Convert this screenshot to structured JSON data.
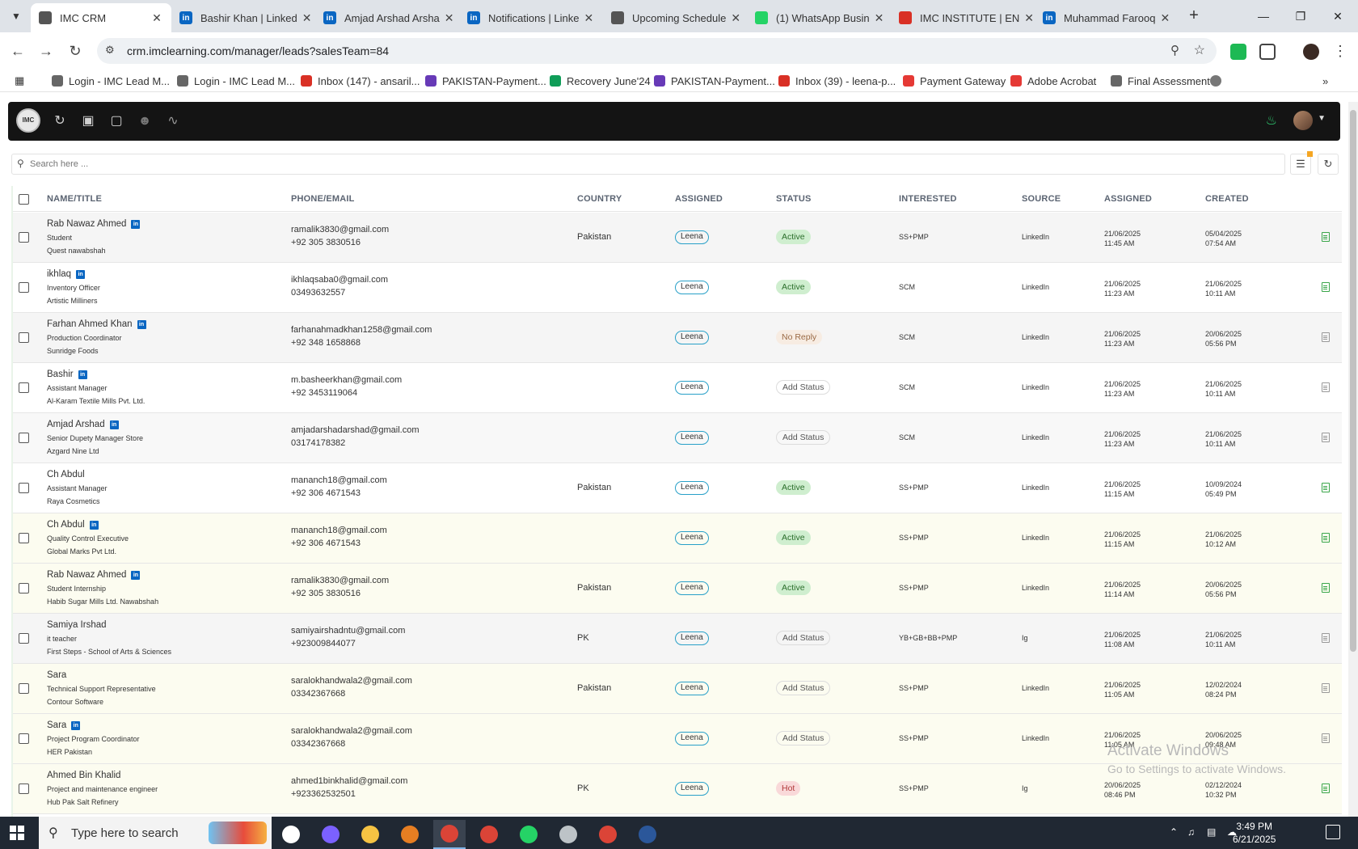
{
  "browser": {
    "tabs": [
      {
        "title": "IMC CRM",
        "icon": "crm-seal-icon",
        "color": "#555555",
        "active": true
      },
      {
        "title": "Bashir Khan | Linked",
        "icon": "linkedin-icon",
        "color": "#0a66c2"
      },
      {
        "title": "Amjad Arshad Arsha",
        "icon": "linkedin-icon",
        "color": "#0a66c2"
      },
      {
        "title": "Notifications | Linke",
        "icon": "linkedin-icon",
        "color": "#0a66c2"
      },
      {
        "title": "Upcoming Schedule",
        "icon": "crm-seal-icon",
        "color": "#555555"
      },
      {
        "title": "(1) WhatsApp Busin",
        "icon": "whatsapp-icon",
        "color": "#25d366"
      },
      {
        "title": "IMC INSTITUTE | EN",
        "icon": "gmail-icon",
        "color": "#d93025"
      },
      {
        "title": "Muhammad Farooq",
        "icon": "linkedin-icon",
        "color": "#0a66c2"
      }
    ],
    "url": "crm.imclearning.com/manager/leads?salesTeam=84",
    "bookmarks": [
      {
        "label": "Login - IMC Lead M...",
        "color": "#666666"
      },
      {
        "label": "Login - IMC Lead M...",
        "color": "#666666"
      },
      {
        "label": "Inbox (147) - ansaril...",
        "color": "#d93025"
      },
      {
        "label": "PAKISTAN-Payment...",
        "color": "#673ab7"
      },
      {
        "label": "Recovery June'24",
        "color": "#0f9d58"
      },
      {
        "label": "PAKISTAN-Payment...",
        "color": "#673ab7"
      },
      {
        "label": "Inbox (39) - leena-p...",
        "color": "#d93025"
      },
      {
        "label": "Payment Gateway",
        "color": "#e53935"
      },
      {
        "label": "Adobe Acrobat",
        "color": "#e53935"
      },
      {
        "label": "Final Assessment",
        "color": "#666666"
      }
    ]
  },
  "crm": {
    "logo_text": "IMC",
    "search_placeholder": "Search here ...",
    "columns": {
      "name": "NAME/TITLE",
      "contact": "PHONE/EMAIL",
      "country": "COUNTRY",
      "assigned": "ASSIGNED",
      "status": "STATUS",
      "interested": "INTERESTED",
      "source": "SOURCE",
      "assigned_at": "ASSIGNED",
      "created": "CREATED"
    },
    "leads": [
      {
        "name": "Rab Nawaz Ahmed",
        "linkedin": true,
        "title": "Student",
        "company": "Quest nawabshah",
        "email": "ramalik3830@gmail.com",
        "phone": "+92 305 3830516",
        "country": "Pakistan",
        "assigned": "Leena",
        "status": "Active",
        "status_kind": "active",
        "interested": "SS+PMP",
        "source": "LinkedIn",
        "assigned_date": "21/06/2025",
        "assigned_time": "11:45 AM",
        "created_date": "05/04/2025",
        "created_time": "07:54 AM",
        "row_tone": "gray",
        "note_color": "green"
      },
      {
        "name": "ikhlaq",
        "linkedin": true,
        "title": "Inventory Officer",
        "company": "Artistic Milliners",
        "email": "ikhlaqsaba0@gmail.com",
        "phone": "03493632557",
        "country": "",
        "assigned": "Leena",
        "status": "Active",
        "status_kind": "active",
        "interested": "SCM",
        "source": "LinkedIn",
        "assigned_date": "21/06/2025",
        "assigned_time": "11:23 AM",
        "created_date": "21/06/2025",
        "created_time": "10:11 AM",
        "row_tone": "white",
        "note_color": "green"
      },
      {
        "name": "Farhan Ahmed Khan",
        "linkedin": true,
        "title": "Production Coordinator",
        "company": "Sunridge Foods",
        "email": "farhanahmadkhan1258@gmail.com",
        "phone": "+92 348 1658868",
        "country": "",
        "assigned": "Leena",
        "status": "No Reply",
        "status_kind": "noreply",
        "interested": "SCM",
        "source": "LinkedIn",
        "assigned_date": "21/06/2025",
        "assigned_time": "11:23 AM",
        "created_date": "20/06/2025",
        "created_time": "05:56 PM",
        "row_tone": "gray",
        "note_color": "gray"
      },
      {
        "name": "Bashir",
        "linkedin": true,
        "title": "Assistant Manager",
        "company": "Al-Karam Textile Mills Pvt. Ltd.",
        "email": "m.basheerkhan@gmail.com",
        "phone": "+92 3453119064",
        "country": "",
        "assigned": "Leena",
        "status": "Add Status",
        "status_kind": "add",
        "interested": "SCM",
        "source": "LinkedIn",
        "assigned_date": "21/06/2025",
        "assigned_time": "11:23 AM",
        "created_date": "21/06/2025",
        "created_time": "10:11 AM",
        "row_tone": "white",
        "note_color": "gray"
      },
      {
        "name": "Amjad Arshad",
        "linkedin": true,
        "title": "Senior Dupety Manager Store",
        "company": "Azgard Nine Ltd",
        "email": "amjadarshadarshad@gmail.com",
        "phone": "03174178382",
        "country": "",
        "assigned": "Leena",
        "status": "Add Status",
        "status_kind": "add",
        "interested": "SCM",
        "source": "LinkedIn",
        "assigned_date": "21/06/2025",
        "assigned_time": "11:23 AM",
        "created_date": "21/06/2025",
        "created_time": "10:11 AM",
        "row_tone": "gray2",
        "note_color": "gray"
      },
      {
        "name": "Ch Abdul",
        "linkedin": false,
        "title": "Assistant Manager",
        "company": "Raya Cosmetics",
        "email": "mananch18@gmail.com",
        "phone": "+92 306 4671543",
        "country": "Pakistan",
        "assigned": "Leena",
        "status": "Active",
        "status_kind": "active",
        "interested": "SS+PMP",
        "source": "LinkedIn",
        "assigned_date": "21/06/2025",
        "assigned_time": "11:15 AM",
        "created_date": "10/09/2024",
        "created_time": "05:49 PM",
        "row_tone": "white",
        "note_color": "green"
      },
      {
        "name": "Ch Abdul",
        "linkedin": true,
        "title": "Quality Control Executive",
        "company": "Global Marks Pvt Ltd.",
        "email": "mananch18@gmail.com",
        "phone": "+92 306 4671543",
        "country": "",
        "assigned": "Leena",
        "status": "Active",
        "status_kind": "active",
        "interested": "SS+PMP",
        "source": "LinkedIn",
        "assigned_date": "21/06/2025",
        "assigned_time": "11:15 AM",
        "created_date": "21/06/2025",
        "created_time": "10:12 AM",
        "row_tone": "yellow",
        "note_color": "green"
      },
      {
        "name": "Rab Nawaz Ahmed",
        "linkedin": true,
        "title": "Student Internship",
        "company": "Habib Sugar Mills Ltd. Nawabshah",
        "email": "ramalik3830@gmail.com",
        "phone": "+92 305 3830516",
        "country": "Pakistan",
        "assigned": "Leena",
        "status": "Active",
        "status_kind": "active",
        "interested": "SS+PMP",
        "source": "LinkedIn",
        "assigned_date": "21/06/2025",
        "assigned_time": "11:14 AM",
        "created_date": "20/06/2025",
        "created_time": "05:56 PM",
        "row_tone": "yellow",
        "note_color": "green"
      },
      {
        "name": "Samiya Irshad",
        "linkedin": false,
        "title": "it teacher",
        "company": "First Steps - School of Arts & Sciences",
        "email": "samiyairshadntu@gmail.com",
        "phone": "+923009844077",
        "country": "PK",
        "assigned": "Leena",
        "status": "Add Status",
        "status_kind": "add",
        "interested": "YB+GB+BB+PMP",
        "source": "Ig",
        "assigned_date": "21/06/2025",
        "assigned_time": "11:08 AM",
        "created_date": "21/06/2025",
        "created_time": "10:11 AM",
        "row_tone": "gray",
        "note_color": "gray"
      },
      {
        "name": "Sara",
        "linkedin": false,
        "title": "Technical Support Representative",
        "company": "Contour Software",
        "email": "saralokhandwala2@gmail.com",
        "phone": "03342367668",
        "country": "Pakistan",
        "assigned": "Leena",
        "status": "Add Status",
        "status_kind": "add",
        "interested": "SS+PMP",
        "source": "LinkedIn",
        "assigned_date": "21/06/2025",
        "assigned_time": "11:05 AM",
        "created_date": "12/02/2024",
        "created_time": "08:24 PM",
        "row_tone": "yellow",
        "note_color": "gray"
      },
      {
        "name": "Sara",
        "linkedin": true,
        "title": "Project Program Coordinator",
        "company": "HER Pakistan",
        "email": "saralokhandwala2@gmail.com",
        "phone": "03342367668",
        "country": "",
        "assigned": "Leena",
        "status": "Add Status",
        "status_kind": "add",
        "interested": "SS+PMP",
        "source": "LinkedIn",
        "assigned_date": "21/06/2025",
        "assigned_time": "11:05 AM",
        "created_date": "20/06/2025",
        "created_time": "09:48 AM",
        "row_tone": "yellow",
        "note_color": "gray"
      },
      {
        "name": "Ahmed Bin Khalid",
        "linkedin": false,
        "title": "Project and maintenance engineer",
        "company": "Hub Pak Salt Refinery",
        "email": "ahmed1binkhalid@gmail.com",
        "phone": "+923362532501",
        "country": "PK",
        "assigned": "Leena",
        "status": "Hot",
        "status_kind": "hot",
        "interested": "SS+PMP",
        "source": "Ig",
        "assigned_date": "20/06/2025",
        "assigned_time": "08:46 PM",
        "created_date": "02/12/2024",
        "created_time": "10:32 PM",
        "row_tone": "yellow",
        "note_color": "green"
      }
    ]
  },
  "watermark": {
    "line1": "Activate Windows",
    "line2": "Go to Settings to activate Windows."
  },
  "taskbar": {
    "search_placeholder": "Type here to search",
    "time": "3:49 PM",
    "date": "6/21/2025",
    "apps": [
      {
        "name": "task-view",
        "color": "#ffffff"
      },
      {
        "name": "copilot",
        "color": "#7b61ff"
      },
      {
        "name": "file-explorer",
        "color": "#f6c343"
      },
      {
        "name": "app-orange",
        "color": "#e67e22"
      },
      {
        "name": "chrome",
        "color": "#db4437"
      },
      {
        "name": "chrome-2",
        "color": "#db4437"
      },
      {
        "name": "whatsapp",
        "color": "#25d366"
      },
      {
        "name": "clock-app",
        "color": "#bdc3c7"
      },
      {
        "name": "chrome-3",
        "color": "#db4437"
      },
      {
        "name": "word",
        "color": "#2b579a"
      }
    ]
  }
}
